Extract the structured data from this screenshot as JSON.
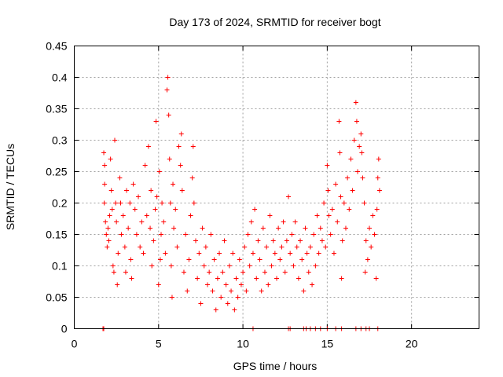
{
  "chart_data": {
    "type": "scatter",
    "title": "Day 173 of 2024, SRMTID for receiver bogt",
    "xlabel": "GPS time / hours",
    "ylabel": "SRMTID / TECUs",
    "xlim": [
      0,
      24
    ],
    "ylim": [
      0,
      0.45
    ],
    "xticks": [
      0,
      5,
      10,
      15,
      20
    ],
    "yticks": [
      0,
      0.05,
      0.1,
      0.15,
      0.2,
      0.25,
      0.3,
      0.35,
      0.4,
      0.45
    ],
    "xtick_labels": [
      "0",
      "5",
      "10",
      "15",
      "20"
    ],
    "ytick_labels": [
      "0",
      "0.05",
      "0.1",
      "0.15",
      "0.2",
      "0.25",
      "0.3",
      "0.35",
      "0.4",
      "0.45"
    ],
    "grid": true,
    "marker": "+",
    "color": "#ff0000",
    "series": [
      {
        "name": "SRMTID",
        "points": [
          [
            1.7,
            0.0
          ],
          [
            1.75,
            0.0
          ],
          [
            10.6,
            0.0
          ],
          [
            12.7,
            0.0
          ],
          [
            12.8,
            0.0
          ],
          [
            13.6,
            0.0
          ],
          [
            13.75,
            0.0
          ],
          [
            14.0,
            0.0
          ],
          [
            14.3,
            0.0
          ],
          [
            14.6,
            0.0
          ],
          [
            15.0,
            0.0
          ],
          [
            15.5,
            0.0
          ],
          [
            15.85,
            0.0
          ],
          [
            16.7,
            0.0
          ],
          [
            17.0,
            0.0
          ],
          [
            17.3,
            0.0
          ],
          [
            17.5,
            0.0
          ],
          [
            18.0,
            0.0
          ],
          [
            1.75,
            0.28
          ],
          [
            1.8,
            0.26
          ],
          [
            1.8,
            0.23
          ],
          [
            1.78,
            0.2
          ],
          [
            1.85,
            0.17
          ],
          [
            1.9,
            0.15
          ],
          [
            1.95,
            0.13
          ],
          [
            2.0,
            0.16
          ],
          [
            2.05,
            0.14
          ],
          [
            2.1,
            0.18
          ],
          [
            2.15,
            0.27
          ],
          [
            2.2,
            0.22
          ],
          [
            2.25,
            0.19
          ],
          [
            2.3,
            0.1
          ],
          [
            2.35,
            0.09
          ],
          [
            2.4,
            0.3
          ],
          [
            2.45,
            0.2
          ],
          [
            2.5,
            0.17
          ],
          [
            2.55,
            0.07
          ],
          [
            2.6,
            0.12
          ],
          [
            2.7,
            0.24
          ],
          [
            2.75,
            0.2
          ],
          [
            2.8,
            0.15
          ],
          [
            2.9,
            0.18
          ],
          [
            3.0,
            0.13
          ],
          [
            3.05,
            0.09
          ],
          [
            3.1,
            0.22
          ],
          [
            3.2,
            0.16
          ],
          [
            3.3,
            0.2
          ],
          [
            3.35,
            0.11
          ],
          [
            3.4,
            0.08
          ],
          [
            3.5,
            0.23
          ],
          [
            3.6,
            0.19
          ],
          [
            3.7,
            0.15
          ],
          [
            3.8,
            0.21
          ],
          [
            3.9,
            0.13
          ],
          [
            4.0,
            0.17
          ],
          [
            4.1,
            0.12
          ],
          [
            4.2,
            0.26
          ],
          [
            4.3,
            0.18
          ],
          [
            4.4,
            0.29
          ],
          [
            4.5,
            0.16
          ],
          [
            4.55,
            0.22
          ],
          [
            4.6,
            0.1
          ],
          [
            4.7,
            0.14
          ],
          [
            4.8,
            0.19
          ],
          [
            4.85,
            0.33
          ],
          [
            4.9,
            0.21
          ],
          [
            5.0,
            0.07
          ],
          [
            5.05,
            0.25
          ],
          [
            5.1,
            0.11
          ],
          [
            5.15,
            0.15
          ],
          [
            5.2,
            0.2
          ],
          [
            5.3,
            0.17
          ],
          [
            5.4,
            0.12
          ],
          [
            5.5,
            0.38
          ],
          [
            5.55,
            0.4
          ],
          [
            5.6,
            0.34
          ],
          [
            5.65,
            0.27
          ],
          [
            5.7,
            0.2
          ],
          [
            5.75,
            0.1
          ],
          [
            5.8,
            0.05
          ],
          [
            5.85,
            0.23
          ],
          [
            5.9,
            0.16
          ],
          [
            6.0,
            0.19
          ],
          [
            6.1,
            0.13
          ],
          [
            6.2,
            0.29
          ],
          [
            6.3,
            0.26
          ],
          [
            6.35,
            0.31
          ],
          [
            6.4,
            0.22
          ],
          [
            6.5,
            0.09
          ],
          [
            6.6,
            0.15
          ],
          [
            6.7,
            0.06
          ],
          [
            6.8,
            0.11
          ],
          [
            6.9,
            0.18
          ],
          [
            7.0,
            0.24
          ],
          [
            7.05,
            0.29
          ],
          [
            7.1,
            0.2
          ],
          [
            7.2,
            0.14
          ],
          [
            7.3,
            0.08
          ],
          [
            7.4,
            0.12
          ],
          [
            7.5,
            0.04
          ],
          [
            7.6,
            0.16
          ],
          [
            7.7,
            0.1
          ],
          [
            7.8,
            0.13
          ],
          [
            7.9,
            0.07
          ],
          [
            8.0,
            0.09
          ],
          [
            8.1,
            0.15
          ],
          [
            8.2,
            0.06
          ],
          [
            8.3,
            0.11
          ],
          [
            8.4,
            0.03
          ],
          [
            8.5,
            0.08
          ],
          [
            8.6,
            0.12
          ],
          [
            8.7,
            0.05
          ],
          [
            8.8,
            0.09
          ],
          [
            8.9,
            0.14
          ],
          [
            9.0,
            0.07
          ],
          [
            9.1,
            0.04
          ],
          [
            9.2,
            0.1
          ],
          [
            9.3,
            0.06
          ],
          [
            9.4,
            0.12
          ],
          [
            9.5,
            0.03
          ],
          [
            9.6,
            0.08
          ],
          [
            9.7,
            0.05
          ],
          [
            9.8,
            0.11
          ],
          [
            9.9,
            0.07
          ],
          [
            10.0,
            0.09
          ],
          [
            10.1,
            0.13
          ],
          [
            10.2,
            0.06
          ],
          [
            10.3,
            0.15
          ],
          [
            10.4,
            0.1
          ],
          [
            10.5,
            0.17
          ],
          [
            10.6,
            0.12
          ],
          [
            10.7,
            0.19
          ],
          [
            10.8,
            0.08
          ],
          [
            10.9,
            0.14
          ],
          [
            11.0,
            0.11
          ],
          [
            11.1,
            0.06
          ],
          [
            11.2,
            0.16
          ],
          [
            11.3,
            0.09
          ],
          [
            11.4,
            0.13
          ],
          [
            11.5,
            0.07
          ],
          [
            11.6,
            0.18
          ],
          [
            11.7,
            0.1
          ],
          [
            11.8,
            0.14
          ],
          [
            11.9,
            0.12
          ],
          [
            12.0,
            0.08
          ],
          [
            12.1,
            0.16
          ],
          [
            12.2,
            0.11
          ],
          [
            12.3,
            0.13
          ],
          [
            12.4,
            0.17
          ],
          [
            12.5,
            0.09
          ],
          [
            12.6,
            0.14
          ],
          [
            12.7,
            0.21
          ],
          [
            12.8,
            0.12
          ],
          [
            12.9,
            0.15
          ],
          [
            13.0,
            0.1
          ],
          [
            13.1,
            0.17
          ],
          [
            13.2,
            0.13
          ],
          [
            13.3,
            0.08
          ],
          [
            13.4,
            0.14
          ],
          [
            13.5,
            0.11
          ],
          [
            13.6,
            0.06
          ],
          [
            13.7,
            0.16
          ],
          [
            13.8,
            0.12
          ],
          [
            13.9,
            0.09
          ],
          [
            14.0,
            0.13
          ],
          [
            14.1,
            0.07
          ],
          [
            14.2,
            0.15
          ],
          [
            14.3,
            0.1
          ],
          [
            14.4,
            0.18
          ],
          [
            14.5,
            0.12
          ],
          [
            14.6,
            0.16
          ],
          [
            14.7,
            0.14
          ],
          [
            14.8,
            0.2
          ],
          [
            14.9,
            0.13
          ],
          [
            15.0,
            0.26
          ],
          [
            15.05,
            0.22
          ],
          [
            15.1,
            0.18
          ],
          [
            15.2,
            0.15
          ],
          [
            15.3,
            0.19
          ],
          [
            15.4,
            0.12
          ],
          [
            15.5,
            0.23
          ],
          [
            15.6,
            0.17
          ],
          [
            15.7,
            0.33
          ],
          [
            15.75,
            0.28
          ],
          [
            15.8,
            0.21
          ],
          [
            15.85,
            0.08
          ],
          [
            15.9,
            0.14
          ],
          [
            16.0,
            0.2
          ],
          [
            16.1,
            0.16
          ],
          [
            16.2,
            0.24
          ],
          [
            16.3,
            0.19
          ],
          [
            16.4,
            0.27
          ],
          [
            16.5,
            0.22
          ],
          [
            16.6,
            0.3
          ],
          [
            16.7,
            0.36
          ],
          [
            16.75,
            0.33
          ],
          [
            16.8,
            0.25
          ],
          [
            16.9,
            0.29
          ],
          [
            17.0,
            0.31
          ],
          [
            17.05,
            0.28
          ],
          [
            17.1,
            0.24
          ],
          [
            17.2,
            0.2
          ],
          [
            17.25,
            0.09
          ],
          [
            17.3,
            0.14
          ],
          [
            17.4,
            0.11
          ],
          [
            17.5,
            0.16
          ],
          [
            17.6,
            0.13
          ],
          [
            17.7,
            0.18
          ],
          [
            17.8,
            0.15
          ],
          [
            17.9,
            0.08
          ],
          [
            17.95,
            0.19
          ],
          [
            18.0,
            0.24
          ],
          [
            18.05,
            0.27
          ],
          [
            18.1,
            0.22
          ]
        ]
      }
    ]
  }
}
